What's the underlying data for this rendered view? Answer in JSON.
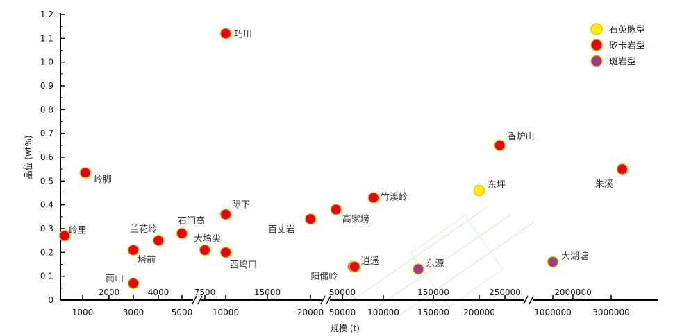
{
  "chart_data": {
    "type": "scatter",
    "xlabel": "规模 (t)",
    "ylabel": "品位 (wt%)",
    "ylim": [
      0,
      1.2
    ],
    "y_ticks": [
      "0",
      "0.1",
      "0.2",
      "0.3",
      "0.4",
      "0.5",
      "0.6",
      "0.7",
      "0.8",
      "0.9",
      "1.0",
      "1.1",
      "1.2"
    ],
    "x_scale": "segmented (broken axis)",
    "x_ticks_bottom": [
      "1000",
      "3000",
      "5000",
      "10000",
      "20000",
      "50000",
      "100000",
      "150000",
      "200000",
      "1000000",
      "3000000"
    ],
    "x_ticks_top": [
      "2000",
      "4000",
      "7500",
      "15000",
      "50000",
      "150000",
      "250000",
      "2000000"
    ],
    "legend_position": "top-right",
    "series": [
      {
        "name": "石英脉型",
        "color": "#ffee00",
        "points": [
          {
            "label": "东坪",
            "x": 200000,
            "y": 0.46
          }
        ]
      },
      {
        "name": "矽卡岩型",
        "color": "#e60012",
        "points": [
          {
            "label": "岭里",
            "x": 700,
            "y": 0.27
          },
          {
            "label": "岭脚",
            "x": 1100,
            "y": 0.535
          },
          {
            "label": "塔前",
            "x": 3000,
            "y": 0.21
          },
          {
            "label": "南山",
            "x": 3000,
            "y": 0.07
          },
          {
            "label": "兰花岭",
            "x": 4000,
            "y": 0.25
          },
          {
            "label": "石门高",
            "x": 5000,
            "y": 0.28
          },
          {
            "label": "大坞尖",
            "x": 7500,
            "y": 0.21
          },
          {
            "label": "巧川",
            "x": 10000,
            "y": 1.12
          },
          {
            "label": "际下",
            "x": 10000,
            "y": 0.36
          },
          {
            "label": "西坞口",
            "x": 10000,
            "y": 0.2
          },
          {
            "label": "百丈岩",
            "x": 20000,
            "y": 0.34
          },
          {
            "label": "高家塝",
            "x": 44000,
            "y": 0.38
          },
          {
            "label": "竹溪岭",
            "x": 88000,
            "y": 0.43
          },
          {
            "label": "阳储岭",
            "x": 63000,
            "y": 0.14
          },
          {
            "label": "逍遥",
            "x": 65000,
            "y": 0.14
          },
          {
            "label": "香炉山",
            "x": 240000,
            "y": 0.65
          },
          {
            "label": "朱溪",
            "x": 3200000,
            "y": 0.55
          }
        ]
      },
      {
        "name": "斑岩型",
        "color": "#a23b83",
        "points": [
          {
            "label": "东源",
            "x": 135000,
            "y": 0.13
          },
          {
            "label": "大湖塘",
            "x": 1000000,
            "y": 0.16
          }
        ]
      }
    ]
  }
}
